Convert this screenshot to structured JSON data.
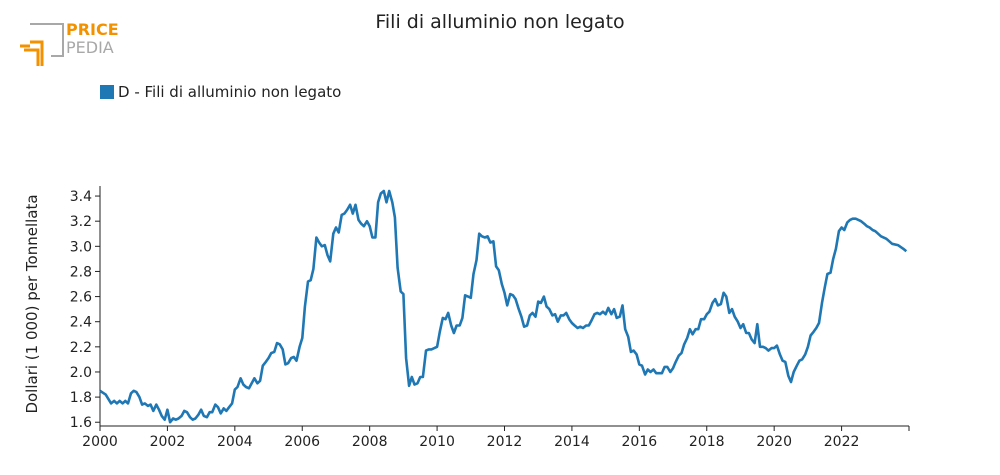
{
  "brand": {
    "top": "PRICE",
    "bottom": "PEDIA"
  },
  "chart_data": {
    "type": "line",
    "title": "Fili di alluminio non legato",
    "ylabel": "Dollari (1 000) per Tonnellata",
    "xlabel": "",
    "xlim": [
      2000,
      2024
    ],
    "ylim": [
      1.57,
      3.48
    ],
    "xticks": [
      2000,
      2002,
      2004,
      2006,
      2008,
      2010,
      2012,
      2014,
      2016,
      2018,
      2020,
      2022
    ],
    "yticks": [
      1.6,
      1.8,
      2.0,
      2.2,
      2.4,
      2.6,
      2.8,
      3.0,
      3.2,
      3.4
    ],
    "xtick_labels": [
      "2000",
      "2002",
      "2004",
      "2006",
      "2008",
      "2010",
      "2012",
      "2014",
      "2016",
      "2018",
      "2020",
      "2022"
    ],
    "ytick_labels": [
      "1.6",
      "1.8",
      "2.0",
      "2.2",
      "2.4",
      "2.6",
      "2.8",
      "3.0",
      "3.2",
      "3.4"
    ],
    "legend_position": "top-left",
    "grid": false,
    "colors": {
      "series": "#1f77b4",
      "brand_orange": "#f39200",
      "brand_gray": "#9a9a9a"
    },
    "series": [
      {
        "name": "D - Fili di alluminio non legato",
        "x": [
          2000.0,
          2000.17,
          2000.33,
          2000.42,
          2000.5,
          2000.58,
          2000.67,
          2000.75,
          2000.83,
          2000.92,
          2001.0,
          2001.08,
          2001.17,
          2001.25,
          2001.33,
          2001.42,
          2001.5,
          2001.58,
          2001.67,
          2001.75,
          2001.83,
          2001.92,
          2002.0,
          2002.08,
          2002.17,
          2002.25,
          2002.33,
          2002.42,
          2002.5,
          2002.58,
          2002.67,
          2002.75,
          2002.83,
          2002.92,
          2003.0,
          2003.08,
          2003.17,
          2003.25,
          2003.33,
          2003.42,
          2003.5,
          2003.58,
          2003.67,
          2003.75,
          2003.83,
          2003.92,
          2004.0,
          2004.08,
          2004.17,
          2004.25,
          2004.33,
          2004.42,
          2004.5,
          2004.58,
          2004.67,
          2004.75,
          2004.83,
          2004.92,
          2005.0,
          2005.08,
          2005.17,
          2005.25,
          2005.33,
          2005.42,
          2005.5,
          2005.58,
          2005.67,
          2005.75,
          2005.83,
          2005.92,
          2006.0,
          2006.08,
          2006.17,
          2006.25,
          2006.33,
          2006.42,
          2006.5,
          2006.58,
          2006.67,
          2006.75,
          2006.83,
          2006.92,
          2007.0,
          2007.08,
          2007.17,
          2007.25,
          2007.33,
          2007.42,
          2007.5,
          2007.58,
          2007.67,
          2007.75,
          2007.83,
          2007.92,
          2008.0,
          2008.08,
          2008.17,
          2008.25,
          2008.33,
          2008.42,
          2008.5,
          2008.58,
          2008.67,
          2008.75,
          2008.83,
          2008.92,
          2009.0,
          2009.08,
          2009.17,
          2009.25,
          2009.33,
          2009.42,
          2009.5,
          2009.58,
          2009.67,
          2009.75,
          2009.83,
          2009.92,
          2010.0,
          2010.08,
          2010.17,
          2010.25,
          2010.33,
          2010.42,
          2010.5,
          2010.58,
          2010.67,
          2010.75,
          2010.83,
          2010.92,
          2011.0,
          2011.08,
          2011.17,
          2011.25,
          2011.33,
          2011.42,
          2011.5,
          2011.58,
          2011.67,
          2011.75,
          2011.83,
          2011.92,
          2012.0,
          2012.08,
          2012.17,
          2012.25,
          2012.33,
          2012.42,
          2012.5,
          2012.58,
          2012.67,
          2012.75,
          2012.83,
          2012.92,
          2013.0,
          2013.08,
          2013.17,
          2013.25,
          2013.33,
          2013.42,
          2013.5,
          2013.58,
          2013.67,
          2013.75,
          2013.83,
          2013.92,
          2014.0,
          2014.08,
          2014.17,
          2014.25,
          2014.33,
          2014.42,
          2014.5,
          2014.58,
          2014.67,
          2014.75,
          2014.83,
          2014.92,
          2015.0,
          2015.08,
          2015.17,
          2015.25,
          2015.33,
          2015.42,
          2015.5,
          2015.58,
          2015.67,
          2015.75,
          2015.83,
          2015.92,
          2016.0,
          2016.08,
          2016.17,
          2016.25,
          2016.33,
          2016.42,
          2016.5,
          2016.58,
          2016.67,
          2016.75,
          2016.83,
          2016.92,
          2017.0,
          2017.08,
          2017.17,
          2017.25,
          2017.33,
          2017.42,
          2017.5,
          2017.58,
          2017.67,
          2017.75,
          2017.83,
          2017.92,
          2018.0,
          2018.08,
          2018.17,
          2018.25,
          2018.33,
          2018.42,
          2018.5,
          2018.58,
          2018.67,
          2018.75,
          2018.83,
          2018.92,
          2019.0,
          2019.08,
          2019.17,
          2019.25,
          2019.33,
          2019.42,
          2019.5,
          2019.58,
          2019.67,
          2019.75,
          2019.83,
          2019.92,
          2020.0,
          2020.08,
          2020.17,
          2020.25,
          2020.33,
          2020.42,
          2020.5,
          2020.58,
          2020.67,
          2020.75,
          2020.83,
          2020.92,
          2021.0,
          2021.08,
          2021.17,
          2021.25,
          2021.33,
          2021.42,
          2021.5,
          2021.58,
          2021.67,
          2021.75,
          2021.83,
          2021.92,
          2022.0,
          2022.08,
          2022.17,
          2022.25,
          2022.33,
          2022.42,
          2022.5,
          2022.58,
          2022.67,
          2022.75,
          2022.83,
          2022.92,
          2023.0,
          2023.17,
          2023.33,
          2023.5,
          2023.67,
          2023.83,
          2023.92
        ],
        "values": [
          1.85,
          1.82,
          1.75,
          1.77,
          1.75,
          1.77,
          1.75,
          1.77,
          1.75,
          1.83,
          1.85,
          1.84,
          1.8,
          1.74,
          1.75,
          1.73,
          1.74,
          1.69,
          1.74,
          1.7,
          1.65,
          1.62,
          1.7,
          1.6,
          1.63,
          1.62,
          1.63,
          1.65,
          1.69,
          1.68,
          1.64,
          1.62,
          1.63,
          1.66,
          1.7,
          1.65,
          1.64,
          1.68,
          1.68,
          1.74,
          1.72,
          1.67,
          1.71,
          1.69,
          1.72,
          1.75,
          1.86,
          1.88,
          1.95,
          1.9,
          1.88,
          1.87,
          1.91,
          1.95,
          1.91,
          1.93,
          2.05,
          2.08,
          2.11,
          2.15,
          2.16,
          2.23,
          2.22,
          2.18,
          2.06,
          2.07,
          2.11,
          2.12,
          2.09,
          2.2,
          2.27,
          2.52,
          2.72,
          2.73,
          2.82,
          3.07,
          3.03,
          3.0,
          3.01,
          2.93,
          2.88,
          3.1,
          3.15,
          3.11,
          3.25,
          3.26,
          3.29,
          3.33,
          3.26,
          3.33,
          3.21,
          3.18,
          3.16,
          3.2,
          3.16,
          3.07,
          3.07,
          3.35,
          3.42,
          3.44,
          3.35,
          3.44,
          3.35,
          3.23,
          2.83,
          2.64,
          2.62,
          2.11,
          1.89,
          1.96,
          1.9,
          1.91,
          1.96,
          1.96,
          2.17,
          2.18,
          2.18,
          2.19,
          2.2,
          2.32,
          2.43,
          2.42,
          2.47,
          2.37,
          2.31,
          2.37,
          2.37,
          2.43,
          2.61,
          2.6,
          2.59,
          2.78,
          2.89,
          3.1,
          3.08,
          3.07,
          3.08,
          3.03,
          3.04,
          2.84,
          2.81,
          2.7,
          2.63,
          2.53,
          2.62,
          2.61,
          2.58,
          2.5,
          2.44,
          2.36,
          2.37,
          2.45,
          2.47,
          2.44,
          2.56,
          2.55,
          2.6,
          2.52,
          2.5,
          2.45,
          2.46,
          2.4,
          2.45,
          2.45,
          2.47,
          2.42,
          2.39,
          2.37,
          2.35,
          2.36,
          2.35,
          2.37,
          2.37,
          2.41,
          2.46,
          2.47,
          2.46,
          2.48,
          2.46,
          2.51,
          2.46,
          2.5,
          2.43,
          2.44,
          2.53,
          2.34,
          2.28,
          2.16,
          2.17,
          2.14,
          2.06,
          2.05,
          1.98,
          2.02,
          2.0,
          2.02,
          1.99,
          1.99,
          1.99,
          2.04,
          2.04,
          2.0,
          2.03,
          2.08,
          2.13,
          2.15,
          2.22,
          2.27,
          2.34,
          2.3,
          2.34,
          2.34,
          2.42,
          2.42,
          2.46,
          2.48,
          2.55,
          2.58,
          2.53,
          2.54,
          2.63,
          2.6,
          2.47,
          2.5,
          2.44,
          2.4,
          2.35,
          2.38,
          2.31,
          2.31,
          2.26,
          2.23,
          2.38,
          2.2,
          2.2,
          2.19,
          2.17,
          2.19,
          2.19,
          2.21,
          2.14,
          2.09,
          2.08,
          1.97,
          1.92,
          2.0,
          2.05,
          2.09,
          2.1,
          2.14,
          2.2,
          2.29,
          2.32,
          2.35,
          2.39,
          2.55,
          2.67,
          2.78,
          2.79,
          2.9,
          2.98,
          3.12,
          3.15,
          3.13,
          3.19,
          3.21,
          3.22,
          3.22,
          3.21,
          3.2,
          3.18,
          3.16,
          3.15,
          3.13,
          3.12,
          3.08,
          3.06,
          3.02,
          3.01,
          2.98,
          2.96
        ]
      }
    ]
  }
}
